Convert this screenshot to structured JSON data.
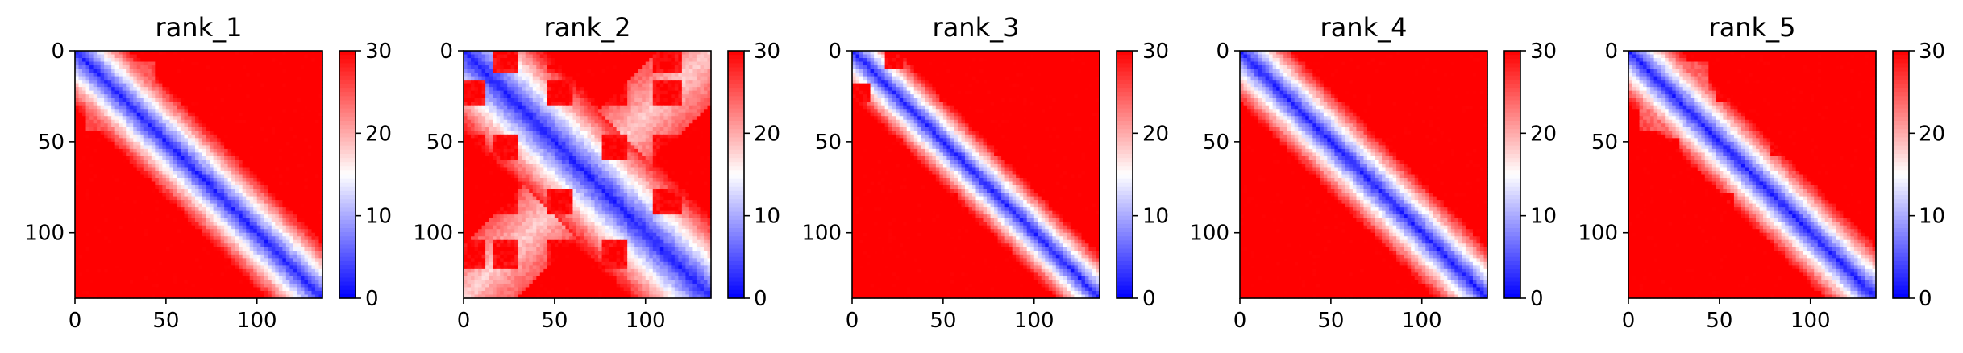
{
  "chart_data": [
    {
      "type": "heatmap",
      "title": "rank_1",
      "xlabel": "",
      "ylabel": "",
      "n": 136,
      "xlim": [
        0,
        136
      ],
      "ylim": [
        136,
        0
      ],
      "xticks": [
        0,
        50,
        100
      ],
      "yticks": [
        0,
        50,
        100
      ],
      "colorbar": {
        "min": 0,
        "max": 30,
        "ticks": [
          0,
          10,
          20,
          30
        ],
        "colormap": "bwr"
      },
      "diagonal_band_width": 14,
      "blocks": []
    },
    {
      "type": "heatmap",
      "title": "rank_2",
      "xlabel": "",
      "ylabel": "",
      "n": 136,
      "xlim": [
        0,
        136
      ],
      "ylim": [
        136,
        0
      ],
      "xticks": [
        0,
        50,
        100
      ],
      "yticks": [
        0,
        50,
        100
      ],
      "colorbar": {
        "min": 0,
        "max": 30,
        "ticks": [
          0,
          10,
          20,
          30
        ],
        "colormap": "bwr"
      },
      "diagonal_band_width": 20,
      "blocks": [
        5,
        23,
        53,
        83,
        112
      ]
    },
    {
      "type": "heatmap",
      "title": "rank_3",
      "xlabel": "",
      "ylabel": "",
      "n": 136,
      "xlim": [
        0,
        136
      ],
      "ylim": [
        136,
        0
      ],
      "xticks": [
        0,
        50,
        100
      ],
      "yticks": [
        0,
        50,
        100
      ],
      "colorbar": {
        "min": 0,
        "max": 30,
        "ticks": [
          0,
          10,
          20,
          30
        ],
        "colormap": "bwr"
      },
      "diagonal_band_width": 11,
      "blocks": [
        5,
        23,
        53,
        83,
        112
      ]
    },
    {
      "type": "heatmap",
      "title": "rank_4",
      "xlabel": "",
      "ylabel": "",
      "n": 136,
      "xlim": [
        0,
        136
      ],
      "ylim": [
        136,
        0
      ],
      "xticks": [
        0,
        50,
        100
      ],
      "yticks": [
        0,
        50,
        100
      ],
      "colorbar": {
        "min": 0,
        "max": 30,
        "ticks": [
          0,
          10,
          20,
          30
        ],
        "colormap": "bwr"
      },
      "diagonal_band_width": 13,
      "blocks": []
    },
    {
      "type": "heatmap",
      "title": "rank_5",
      "xlabel": "",
      "ylabel": "",
      "n": 136,
      "xlim": [
        0,
        136
      ],
      "ylim": [
        136,
        0
      ],
      "xticks": [
        0,
        50,
        100
      ],
      "yticks": [
        0,
        50,
        100
      ],
      "colorbar": {
        "min": 0,
        "max": 30,
        "ticks": [
          0,
          10,
          20,
          30
        ],
        "colormap": "bwr"
      },
      "diagonal_band_width": 13,
      "blocks": [
        23,
        53,
        83
      ]
    }
  ],
  "colors": {
    "low": "#0000ff",
    "mid": "#ffffff",
    "high": "#ff0000"
  }
}
